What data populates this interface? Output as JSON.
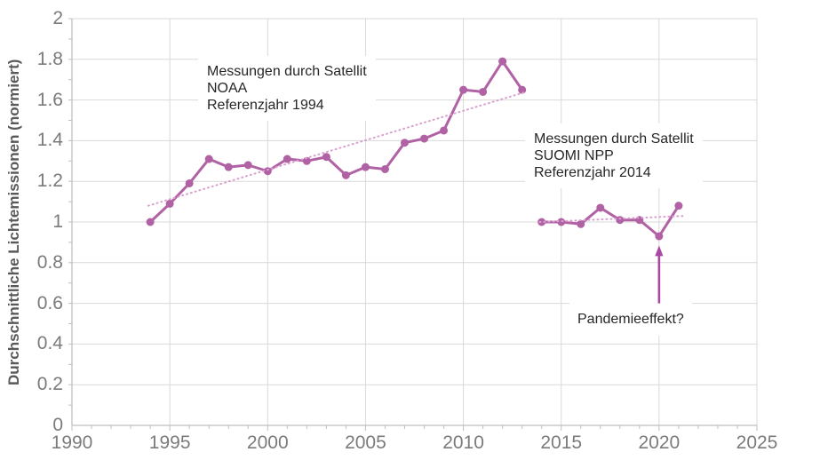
{
  "chart_data": {
    "type": "line",
    "title": "",
    "xlabel": "",
    "ylabel": "Durchschnittliche Lichtemissionen (normiert)",
    "xlim": [
      1990,
      2025
    ],
    "ylim": [
      0,
      2
    ],
    "grid": true,
    "legend": "none",
    "x_ticks": [
      1990,
      1995,
      2000,
      2005,
      2010,
      2015,
      2020,
      2025
    ],
    "y_ticks": [
      {
        "v": 0,
        "label": "0"
      },
      {
        "v": 0.2,
        "label": "0.2"
      },
      {
        "v": 0.4,
        "label": "0.4"
      },
      {
        "v": 0.6,
        "label": "0.6"
      },
      {
        "v": 0.8,
        "label": "0.8"
      },
      {
        "v": 1,
        "label": "1"
      },
      {
        "v": 1.2,
        "label": "1.2"
      },
      {
        "v": 1.4,
        "label": "1.4"
      },
      {
        "v": 1.6,
        "label": "1.6"
      },
      {
        "v": 1.8,
        "label": "1.8"
      },
      {
        "v": 2,
        "label": "2"
      }
    ],
    "series": [
      {
        "name": "NOAA",
        "x": [
          1994,
          1995,
          1996,
          1997,
          1998,
          1999,
          2000,
          2001,
          2002,
          2003,
          2004,
          2005,
          2006,
          2007,
          2008,
          2009,
          2010,
          2011,
          2012,
          2013
        ],
        "values": [
          1.0,
          1.09,
          1.19,
          1.31,
          1.27,
          1.28,
          1.25,
          1.31,
          1.3,
          1.32,
          1.23,
          1.27,
          1.26,
          1.39,
          1.41,
          1.45,
          1.65,
          1.64,
          1.79,
          1.65
        ]
      },
      {
        "name": "SUOMI NPP",
        "x": [
          2014,
          2015,
          2016,
          2017,
          2018,
          2019,
          2020,
          2021
        ],
        "values": [
          1.0,
          1.0,
          0.99,
          1.07,
          1.01,
          1.01,
          0.93,
          1.08
        ]
      }
    ],
    "trendlines": [
      {
        "series": "NOAA",
        "x1": 1993.9,
        "y1": 1.08,
        "x2": 2013.2,
        "y2": 1.64
      },
      {
        "series": "SUOMI NPP",
        "x1": 2013.9,
        "y1": 1.0,
        "x2": 2021.3,
        "y2": 1.03
      }
    ],
    "annotations": [
      {
        "id": "noaa",
        "lines": [
          "Messungen durch Satellit",
          "NOAA",
          "Referenzjahr 1994"
        ]
      },
      {
        "id": "suomi",
        "lines": [
          "Messungen durch Satellit",
          "SUOMI NPP",
          "Referenzjahr 2014"
        ]
      },
      {
        "id": "pandemic",
        "lines": [
          "Pandemieeffekt?"
        ],
        "arrow": {
          "x": 2020,
          "y_from": 0.6,
          "y_tip": 0.885
        }
      }
    ],
    "style": {
      "series_color": "#b162a4",
      "trend_color": "#d9a0cf",
      "arrow_color": "#a849a2",
      "grid_color": "#d9d9d9",
      "axis_color": "#bfbfbf",
      "tick_text_color": "#7b7b7b",
      "title_text_color": "#595959",
      "annotation_text_color": "#262626"
    }
  }
}
